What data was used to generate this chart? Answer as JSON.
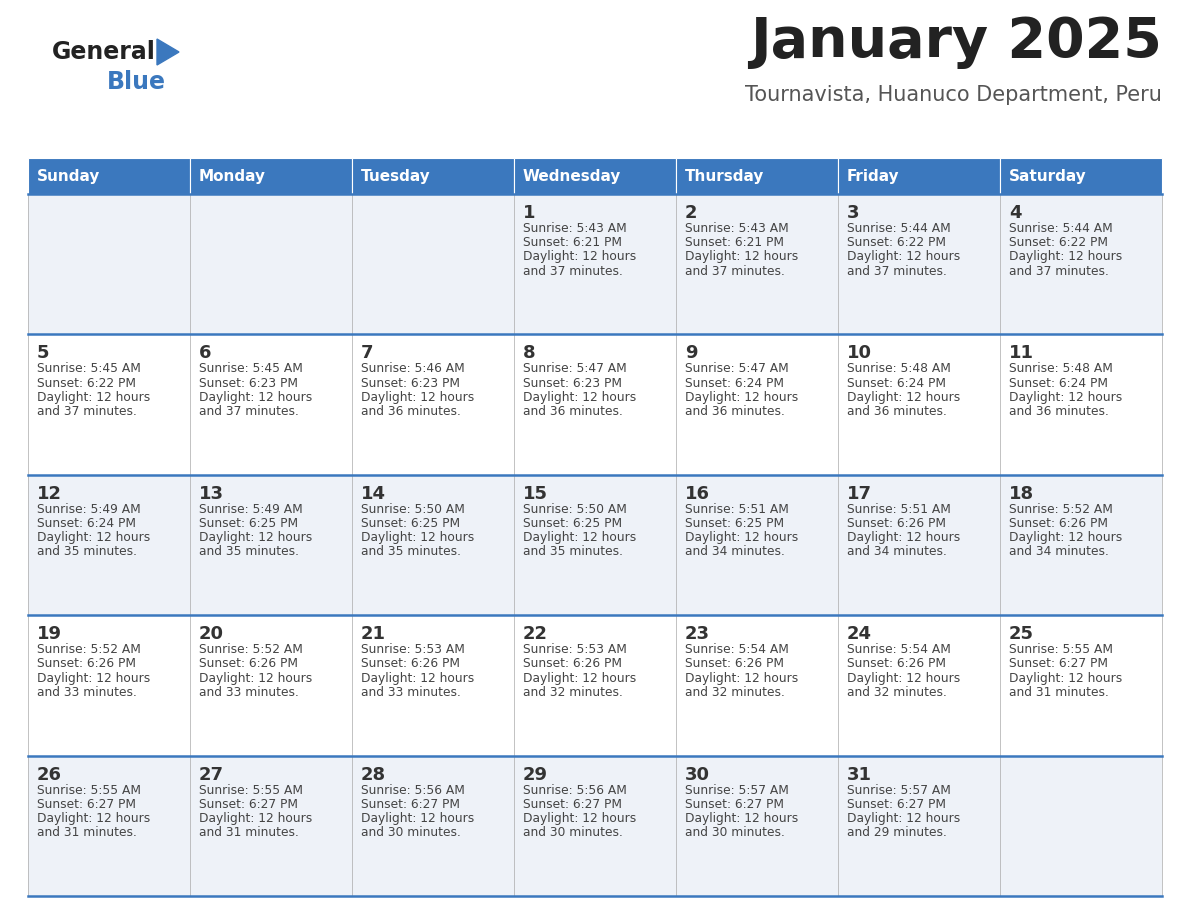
{
  "title": "January 2025",
  "subtitle": "Tournavista, Huanuco Department, Peru",
  "days_of_week": [
    "Sunday",
    "Monday",
    "Tuesday",
    "Wednesday",
    "Thursday",
    "Friday",
    "Saturday"
  ],
  "header_bg": "#3b78be",
  "header_text": "#ffffff",
  "row_bg_odd": "#eef2f8",
  "row_bg_even": "#ffffff",
  "cell_border": "#3b78be",
  "cell_border_light": "#aaaaaa",
  "day_num_color": "#333333",
  "info_text_color": "#444444",
  "title_color": "#222222",
  "subtitle_color": "#555555",
  "logo_general_color": "#222222",
  "logo_blue_color": "#3b78be",
  "logo_triangle_color": "#3b78be",
  "calendar_data": [
    [
      {
        "day": "",
        "sunrise": "",
        "sunset": "",
        "daylight_h": "",
        "daylight_m": ""
      },
      {
        "day": "",
        "sunrise": "",
        "sunset": "",
        "daylight_h": "",
        "daylight_m": ""
      },
      {
        "day": "",
        "sunrise": "",
        "sunset": "",
        "daylight_h": "",
        "daylight_m": ""
      },
      {
        "day": "1",
        "sunrise": "5:43 AM",
        "sunset": "6:21 PM",
        "daylight_h": "12",
        "daylight_m": "37"
      },
      {
        "day": "2",
        "sunrise": "5:43 AM",
        "sunset": "6:21 PM",
        "daylight_h": "12",
        "daylight_m": "37"
      },
      {
        "day": "3",
        "sunrise": "5:44 AM",
        "sunset": "6:22 PM",
        "daylight_h": "12",
        "daylight_m": "37"
      },
      {
        "day": "4",
        "sunrise": "5:44 AM",
        "sunset": "6:22 PM",
        "daylight_h": "12",
        "daylight_m": "37"
      }
    ],
    [
      {
        "day": "5",
        "sunrise": "5:45 AM",
        "sunset": "6:22 PM",
        "daylight_h": "12",
        "daylight_m": "37"
      },
      {
        "day": "6",
        "sunrise": "5:45 AM",
        "sunset": "6:23 PM",
        "daylight_h": "12",
        "daylight_m": "37"
      },
      {
        "day": "7",
        "sunrise": "5:46 AM",
        "sunset": "6:23 PM",
        "daylight_h": "12",
        "daylight_m": "36"
      },
      {
        "day": "8",
        "sunrise": "5:47 AM",
        "sunset": "6:23 PM",
        "daylight_h": "12",
        "daylight_m": "36"
      },
      {
        "day": "9",
        "sunrise": "5:47 AM",
        "sunset": "6:24 PM",
        "daylight_h": "12",
        "daylight_m": "36"
      },
      {
        "day": "10",
        "sunrise": "5:48 AM",
        "sunset": "6:24 PM",
        "daylight_h": "12",
        "daylight_m": "36"
      },
      {
        "day": "11",
        "sunrise": "5:48 AM",
        "sunset": "6:24 PM",
        "daylight_h": "12",
        "daylight_m": "36"
      }
    ],
    [
      {
        "day": "12",
        "sunrise": "5:49 AM",
        "sunset": "6:24 PM",
        "daylight_h": "12",
        "daylight_m": "35"
      },
      {
        "day": "13",
        "sunrise": "5:49 AM",
        "sunset": "6:25 PM",
        "daylight_h": "12",
        "daylight_m": "35"
      },
      {
        "day": "14",
        "sunrise": "5:50 AM",
        "sunset": "6:25 PM",
        "daylight_h": "12",
        "daylight_m": "35"
      },
      {
        "day": "15",
        "sunrise": "5:50 AM",
        "sunset": "6:25 PM",
        "daylight_h": "12",
        "daylight_m": "35"
      },
      {
        "day": "16",
        "sunrise": "5:51 AM",
        "sunset": "6:25 PM",
        "daylight_h": "12",
        "daylight_m": "34"
      },
      {
        "day": "17",
        "sunrise": "5:51 AM",
        "sunset": "6:26 PM",
        "daylight_h": "12",
        "daylight_m": "34"
      },
      {
        "day": "18",
        "sunrise": "5:52 AM",
        "sunset": "6:26 PM",
        "daylight_h": "12",
        "daylight_m": "34"
      }
    ],
    [
      {
        "day": "19",
        "sunrise": "5:52 AM",
        "sunset": "6:26 PM",
        "daylight_h": "12",
        "daylight_m": "33"
      },
      {
        "day": "20",
        "sunrise": "5:52 AM",
        "sunset": "6:26 PM",
        "daylight_h": "12",
        "daylight_m": "33"
      },
      {
        "day": "21",
        "sunrise": "5:53 AM",
        "sunset": "6:26 PM",
        "daylight_h": "12",
        "daylight_m": "33"
      },
      {
        "day": "22",
        "sunrise": "5:53 AM",
        "sunset": "6:26 PM",
        "daylight_h": "12",
        "daylight_m": "32"
      },
      {
        "day": "23",
        "sunrise": "5:54 AM",
        "sunset": "6:26 PM",
        "daylight_h": "12",
        "daylight_m": "32"
      },
      {
        "day": "24",
        "sunrise": "5:54 AM",
        "sunset": "6:26 PM",
        "daylight_h": "12",
        "daylight_m": "32"
      },
      {
        "day": "25",
        "sunrise": "5:55 AM",
        "sunset": "6:27 PM",
        "daylight_h": "12",
        "daylight_m": "31"
      }
    ],
    [
      {
        "day": "26",
        "sunrise": "5:55 AM",
        "sunset": "6:27 PM",
        "daylight_h": "12",
        "daylight_m": "31"
      },
      {
        "day": "27",
        "sunrise": "5:55 AM",
        "sunset": "6:27 PM",
        "daylight_h": "12",
        "daylight_m": "31"
      },
      {
        "day": "28",
        "sunrise": "5:56 AM",
        "sunset": "6:27 PM",
        "daylight_h": "12",
        "daylight_m": "30"
      },
      {
        "day": "29",
        "sunrise": "5:56 AM",
        "sunset": "6:27 PM",
        "daylight_h": "12",
        "daylight_m": "30"
      },
      {
        "day": "30",
        "sunrise": "5:57 AM",
        "sunset": "6:27 PM",
        "daylight_h": "12",
        "daylight_m": "30"
      },
      {
        "day": "31",
        "sunrise": "5:57 AM",
        "sunset": "6:27 PM",
        "daylight_h": "12",
        "daylight_m": "29"
      },
      {
        "day": "",
        "sunrise": "",
        "sunset": "",
        "daylight_h": "",
        "daylight_m": ""
      }
    ]
  ]
}
